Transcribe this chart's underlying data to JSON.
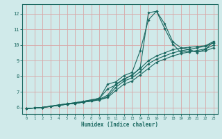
{
  "xlabel": "Humidex (Indice chaleur)",
  "ylabel": "",
  "bg_color": "#d0eaea",
  "grid_color": "#d8a8a8",
  "line_color": "#1a6860",
  "xlim": [
    -0.5,
    23.5
  ],
  "ylim": [
    5.6,
    12.6
  ],
  "xticks": [
    0,
    1,
    2,
    3,
    4,
    5,
    6,
    7,
    8,
    9,
    10,
    11,
    12,
    13,
    14,
    15,
    16,
    17,
    18,
    19,
    20,
    21,
    22,
    23
  ],
  "yticks": [
    6,
    7,
    8,
    9,
    10,
    11,
    12
  ],
  "lines": [
    {
      "x": [
        0,
        1,
        2,
        3,
        4,
        5,
        6,
        7,
        8,
        9,
        10,
        11,
        12,
        13,
        14,
        15,
        16,
        17,
        18,
        19,
        20,
        21,
        22,
        23
      ],
      "y": [
        5.95,
        5.98,
        6.02,
        6.1,
        6.18,
        6.25,
        6.32,
        6.4,
        6.5,
        6.6,
        7.5,
        7.65,
        8.05,
        8.25,
        9.65,
        11.6,
        12.15,
        11.35,
        10.2,
        9.82,
        9.72,
        9.52,
        9.72,
        10.22
      ]
    },
    {
      "x": [
        0,
        1,
        2,
        3,
        4,
        5,
        6,
        7,
        8,
        9,
        10,
        11,
        12,
        13,
        14,
        15,
        16,
        17,
        18,
        19,
        20,
        21,
        22,
        23
      ],
      "y": [
        5.95,
        5.98,
        6.02,
        6.1,
        6.18,
        6.25,
        6.32,
        6.4,
        6.5,
        6.6,
        7.2,
        7.45,
        7.85,
        8.05,
        8.55,
        12.05,
        12.15,
        11.05,
        10.05,
        9.52,
        9.62,
        9.57,
        9.62,
        9.82
      ]
    },
    {
      "x": [
        0,
        1,
        2,
        3,
        4,
        5,
        6,
        7,
        8,
        9,
        10,
        11,
        12,
        13,
        14,
        15,
        16,
        17,
        18,
        19,
        20,
        21,
        22,
        23
      ],
      "y": [
        5.95,
        5.98,
        6.02,
        6.08,
        6.15,
        6.22,
        6.28,
        6.35,
        6.45,
        6.55,
        6.8,
        7.5,
        7.8,
        8.1,
        8.5,
        9.0,
        9.3,
        9.5,
        9.7,
        9.8,
        9.85,
        9.9,
        9.95,
        10.22
      ]
    },
    {
      "x": [
        0,
        1,
        2,
        3,
        4,
        5,
        6,
        7,
        8,
        9,
        10,
        11,
        12,
        13,
        14,
        15,
        16,
        17,
        18,
        19,
        20,
        21,
        22,
        23
      ],
      "y": [
        5.95,
        5.98,
        6.02,
        6.08,
        6.15,
        6.22,
        6.28,
        6.35,
        6.42,
        6.52,
        6.7,
        7.3,
        7.7,
        7.9,
        8.3,
        8.8,
        9.1,
        9.3,
        9.5,
        9.62,
        9.72,
        9.82,
        9.92,
        10.12
      ]
    },
    {
      "x": [
        0,
        1,
        2,
        3,
        4,
        5,
        6,
        7,
        8,
        9,
        10,
        11,
        12,
        13,
        14,
        15,
        16,
        17,
        18,
        19,
        20,
        21,
        22,
        23
      ],
      "y": [
        5.95,
        5.98,
        6.02,
        6.08,
        6.15,
        6.22,
        6.28,
        6.35,
        6.42,
        6.5,
        6.65,
        7.1,
        7.5,
        7.7,
        8.1,
        8.5,
        8.9,
        9.1,
        9.3,
        9.45,
        9.55,
        9.65,
        9.75,
        9.98
      ]
    }
  ]
}
